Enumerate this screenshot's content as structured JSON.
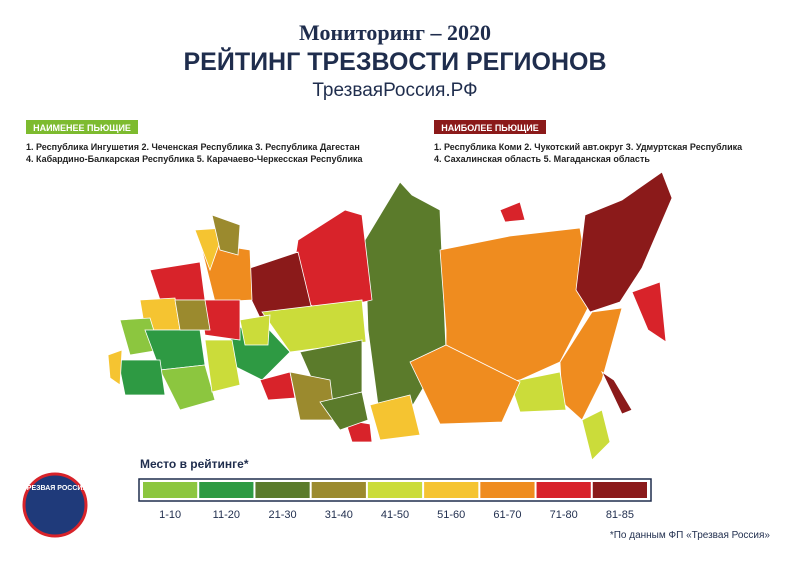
{
  "header": {
    "title": "Мониторинг – 2020",
    "subtitle": "РЕЙТИНГ ТРЕЗВОСТИ РЕГИОНОВ",
    "site": "ТрезваяРоссия.РФ"
  },
  "least": {
    "label": "НАИМЕНЕЕ ПЬЮЩИЕ",
    "lines": [
      "1. Республика Ингушетия 2. Чеченская Республика 3. Республика Дагестан",
      "4. Кабардино-Балкарская Республика 5. Карачаево-Черкесская Республика"
    ]
  },
  "most": {
    "label": "НАИБОЛЕЕ ПЬЮЩИЕ",
    "lines": [
      "1. Республика Коми 2. Чукотский авт.округ 3. Удмуртская Республика",
      "4. Сахалинская область 5. Магаданская область"
    ]
  },
  "legend": {
    "title": "Место в рейтинге*",
    "items": [
      {
        "label": "1-10",
        "color": "#8cc63f"
      },
      {
        "label": "11-20",
        "color": "#2e9a43"
      },
      {
        "label": "21-30",
        "color": "#5b7b2b"
      },
      {
        "label": "31-40",
        "color": "#9b8a2e"
      },
      {
        "label": "41-50",
        "color": "#cbdc3a"
      },
      {
        "label": "51-60",
        "color": "#f5c431"
      },
      {
        "label": "61-70",
        "color": "#ef8c1f"
      },
      {
        "label": "71-80",
        "color": "#d8232a"
      },
      {
        "label": "81-85",
        "color": "#8b1a1a"
      }
    ]
  },
  "footnote": "*По данным ФП «Трезвая Россия»",
  "logo": "ТРЕЗВАЯ РОССИЯ"
}
